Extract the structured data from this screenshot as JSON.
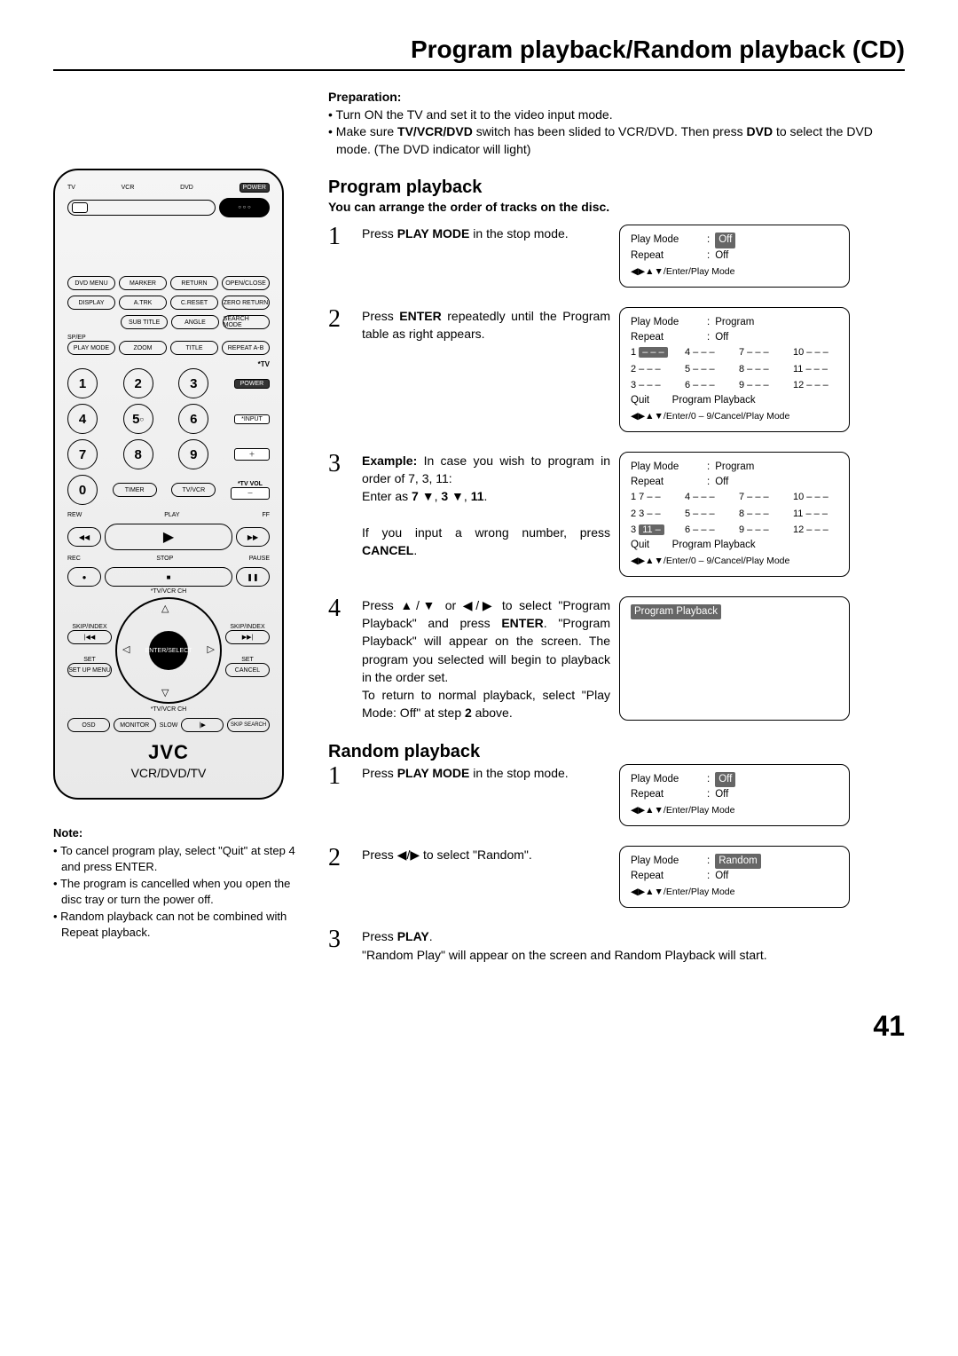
{
  "page": {
    "title": "Program playback/Random playback (CD)",
    "number": "41"
  },
  "remote": {
    "sliderLabels": [
      "TV",
      "VCR",
      "DVD"
    ],
    "power": "POWER",
    "row1": [
      "DVD MENU",
      "MARKER",
      "RETURN",
      "OPEN/CLOSE"
    ],
    "row2": [
      "DISPLAY",
      "A.TRK",
      "C.RESET",
      "ZERO RETURN"
    ],
    "row3": [
      "SUB TITLE",
      "ANGLE",
      "SEARCH MODE"
    ],
    "row4l": "SP/EP",
    "row4": [
      "PLAY MODE",
      "ZOOM",
      "TITLE",
      "REPEAT A-B"
    ],
    "tvLabel": "*TV",
    "powerBtn": "POWER",
    "inputBtn": "*INPUT",
    "plus": "＋",
    "tvvol": "*TV VOL",
    "minus": "－",
    "timer": "TIMER",
    "tvvcr": "TV/VCR",
    "digits": [
      "1",
      "2",
      "3",
      "4",
      "5",
      "6",
      "7",
      "8",
      "9",
      "0"
    ],
    "transport": {
      "rew": "REW",
      "play": "PLAY",
      "ff": "FF",
      "stop": "STOP",
      "rec": "REC",
      "pause": "PAUSE"
    },
    "skip": "SKIP/INDEX",
    "tvvcrch": "*TV/VCR CH",
    "set": "SET",
    "setup": "SET UP MENU",
    "cancel": "CANCEL",
    "enter": "ENTER/SELECT",
    "osd": "OSD",
    "monitor": "MONITOR",
    "slow": "SLOW",
    "skipsearch": "SKIP SEARCH",
    "brand": "JVC",
    "sub": "VCR/DVD/TV"
  },
  "note": {
    "hdr": "Note:",
    "items": [
      "To cancel program play, select \"Quit\" at step 4 and press ENTER.",
      "The program is cancelled when you open the disc tray or turn the power off.",
      "Random playback can not be combined with Repeat playback."
    ]
  },
  "prep": {
    "hdr": "Preparation:",
    "items": [
      "Turn ON the TV and set it to the video input mode.",
      "Make sure TV/VCR/DVD switch has been slided to VCR/DVD. Then press DVD to select the DVD mode. (The DVD indicator will light)"
    ]
  },
  "program": {
    "heading": "Program playback",
    "sub": "You can arrange the order of tracks on the disc.",
    "steps": [
      {
        "n": "1",
        "text": "Press <b>PLAY MODE</b> in the stop mode.",
        "osd": {
          "lines": [
            [
              "Play Mode",
              ":",
              "Off",
              true
            ],
            [
              "Repeat",
              ":",
              "Off",
              false
            ]
          ],
          "foot": "◀▶▲▼/Enter/Play Mode"
        }
      },
      {
        "n": "2",
        "text": "Press <b>ENTER</b> repeatedly until the Program table as right appears.",
        "osd": {
          "lines": [
            [
              "Play Mode",
              ":",
              "Program",
              false
            ],
            [
              "Repeat",
              ":",
              "Off",
              false
            ]
          ],
          "grid": [
            "1 – – –",
            "4 – – –",
            "7 – – –",
            "10 – – –",
            "2 – – –",
            "5 – – –",
            "8 – – –",
            "11 – – –",
            "3 – – –",
            "6 – – –",
            "9 – – –",
            "12 – – –"
          ],
          "midline": "Quit        Program Playback",
          "foot": "◀▶▲▼/Enter/0 – 9/Cancel/Play Mode",
          "hl_idx": 0
        }
      },
      {
        "n": "3",
        "text": "<b>Example:</b> In case you wish to program in order of 7, 3, 11:<br>Enter as <b>7</b> ▼, <b>3</b> ▼, <b>11</b>.<br><br>If you input a wrong number, press <b>CANCEL</b>.",
        "osd": {
          "lines": [
            [
              "Play Mode",
              ":",
              "Program",
              false
            ],
            [
              "Repeat",
              ":",
              "Off",
              false
            ]
          ],
          "grid": [
            "1 7 – –",
            "4 – – –",
            "7 – – –",
            "10 – – –",
            "2 3 – –",
            "5 – – –",
            "8 – – –",
            "11 – – –",
            "3 11 –",
            "6 – – –",
            "9 – – –",
            "12 – – –"
          ],
          "midline": "Quit        Program Playback",
          "foot": "◀▶▲▼/Enter/0 – 9/Cancel/Play Mode",
          "hl_idx": 8
        }
      },
      {
        "n": "4",
        "text": "Press ▲/▼ or ◀/▶ to select \"Program Playback\" and press <b>ENTER</b>. \"Program Playback\" will appear on the screen. The program you selected will begin to playback in the order set.<br>To return to normal playback, select \"Play Mode: Off\" at step <b>2</b> above.",
        "osd": {
          "simple": "Program Playback",
          "tall": true
        }
      }
    ]
  },
  "random": {
    "heading": "Random playback",
    "steps": [
      {
        "n": "1",
        "text": "Press <b>PLAY MODE</b> in the stop mode.",
        "osd": {
          "lines": [
            [
              "Play Mode",
              ":",
              "Off",
              true
            ],
            [
              "Repeat",
              ":",
              "Off",
              false
            ]
          ],
          "foot": "◀▶▲▼/Enter/Play Mode"
        }
      },
      {
        "n": "2",
        "text": "Press ◀/▶ to select \"Random\".",
        "osd": {
          "lines": [
            [
              "Play Mode",
              ":",
              "Random",
              true
            ],
            [
              "Repeat",
              ":",
              "Off",
              false
            ]
          ],
          "foot": "◀▶▲▼/Enter/Play Mode"
        }
      },
      {
        "n": "3",
        "text": "Press <b>PLAY</b>.<br>\"Random Play\" will appear on the screen and Random Playback will start.",
        "wide": true
      }
    ]
  }
}
